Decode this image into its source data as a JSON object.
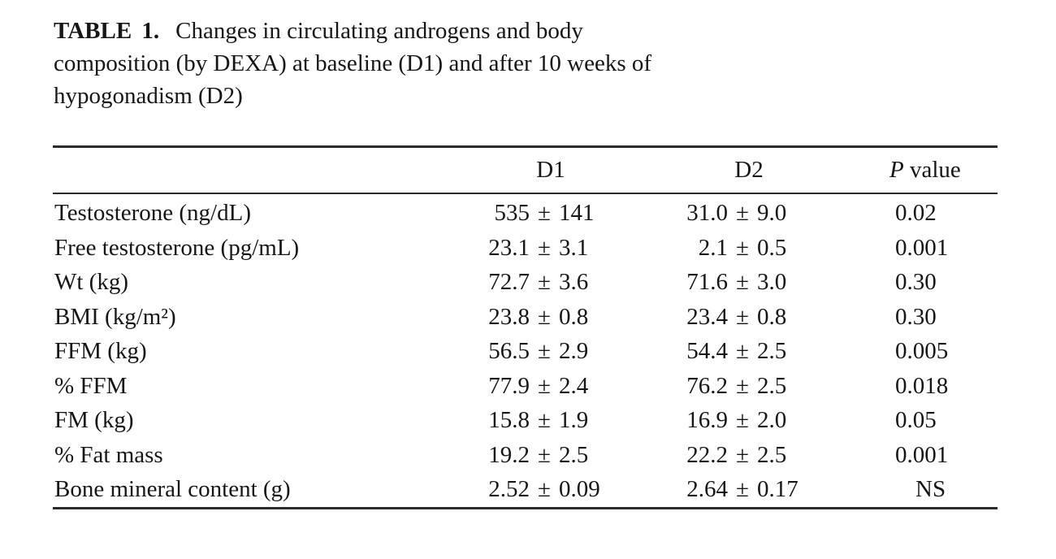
{
  "title": {
    "label": "TABLE 1.",
    "line1_rest": "Changes in circulating androgens and body",
    "line2": "composition (by DEXA) at baseline (D1) and after 10 weeks of",
    "line3": "hypogonadism (D2)"
  },
  "table": {
    "plus_minus": "±",
    "header": {
      "d1": "D1",
      "d2": "D2",
      "p_symbol": "P",
      "p_word": "value"
    },
    "rows": [
      {
        "label": "Testosterone (ng/dL)",
        "d1": {
          "mean": "535",
          "sd": "141"
        },
        "d2": {
          "mean": "31.0",
          "sd": "9.0"
        },
        "p": "0.02"
      },
      {
        "label": "Free testosterone (pg/mL)",
        "d1": {
          "mean": "23.1",
          "sd": "3.1"
        },
        "d2": {
          "mean": "2.1",
          "sd": "0.5"
        },
        "p": "0.001"
      },
      {
        "label": "Wt (kg)",
        "d1": {
          "mean": "72.7",
          "sd": "3.6"
        },
        "d2": {
          "mean": "71.6",
          "sd": "3.0"
        },
        "p": "0.30"
      },
      {
        "label": "BMI (kg/m²)",
        "d1": {
          "mean": "23.8",
          "sd": "0.8"
        },
        "d2": {
          "mean": "23.4",
          "sd": "0.8"
        },
        "p": "0.30"
      },
      {
        "label": "FFM (kg)",
        "d1": {
          "mean": "56.5",
          "sd": "2.9"
        },
        "d2": {
          "mean": "54.4",
          "sd": "2.5"
        },
        "p": "0.005"
      },
      {
        "label": "% FFM",
        "d1": {
          "mean": "77.9",
          "sd": "2.4"
        },
        "d2": {
          "mean": "76.2",
          "sd": "2.5"
        },
        "p": "0.018"
      },
      {
        "label": "FM (kg)",
        "d1": {
          "mean": "15.8",
          "sd": "1.9"
        },
        "d2": {
          "mean": "16.9",
          "sd": "2.0"
        },
        "p": "0.05"
      },
      {
        "label": "% Fat mass",
        "d1": {
          "mean": "19.2",
          "sd": "2.5"
        },
        "d2": {
          "mean": "22.2",
          "sd": "2.5"
        },
        "p": "0.001"
      },
      {
        "label": "Bone mineral content (g)",
        "d1": {
          "mean": "2.52",
          "sd": "0.09"
        },
        "d2": {
          "mean": "2.64",
          "sd": "0.17"
        },
        "p": "NS"
      }
    ]
  }
}
